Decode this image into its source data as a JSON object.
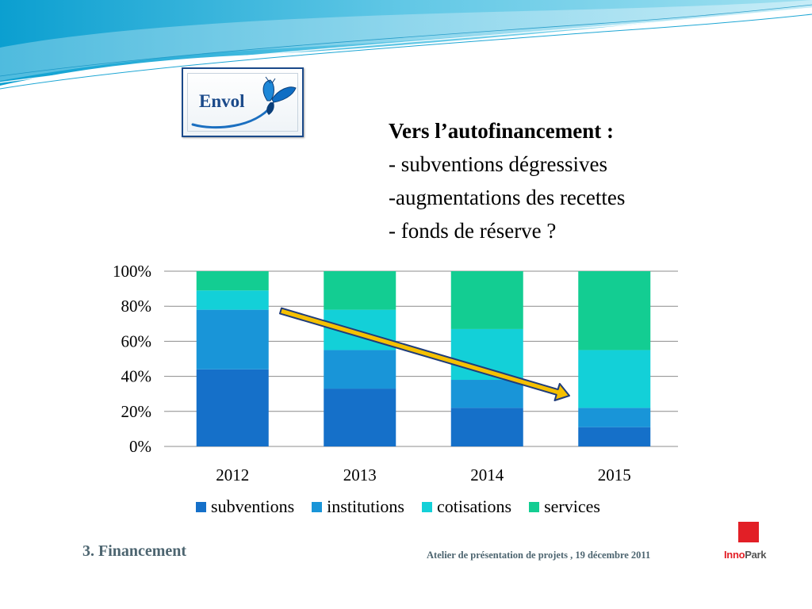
{
  "slide": {
    "heading_title": "Vers l’autofinancement :",
    "bullets": [
      "- subventions dégressives",
      "-augmentations des recettes",
      "- fonds de réserve ?"
    ],
    "section_label": "3. Financement",
    "footer_text": "Atelier de présentation de projets , 19 décembre 2011"
  },
  "logos": {
    "envol_word": "Envol",
    "innopark_part1": "Inno",
    "innopark_part2": "Park"
  },
  "colors": {
    "subventions": "#1570c9",
    "institutions": "#1995d8",
    "cotisations": "#13d0d8",
    "services": "#13cd92",
    "trend_arrow": "#f5c000"
  },
  "chart_data": {
    "type": "bar",
    "stacked": true,
    "percent": true,
    "categories": [
      "2012",
      "2013",
      "2014",
      "2015"
    ],
    "series": [
      {
        "name": "subventions",
        "values": [
          44,
          33,
          22,
          11
        ]
      },
      {
        "name": "institutions",
        "values": [
          34,
          22,
          16,
          11
        ]
      },
      {
        "name": "cotisations",
        "values": [
          11,
          23,
          29,
          33
        ]
      },
      {
        "name": "services",
        "values": [
          11,
          22,
          33,
          45
        ]
      }
    ],
    "y_ticks": [
      "0%",
      "20%",
      "40%",
      "60%",
      "80%",
      "100%"
    ],
    "ylim": [
      0,
      100
    ],
    "grid": true,
    "legend_position": "bottom",
    "annotation": "downward trend arrow from 2012 to 2015"
  }
}
